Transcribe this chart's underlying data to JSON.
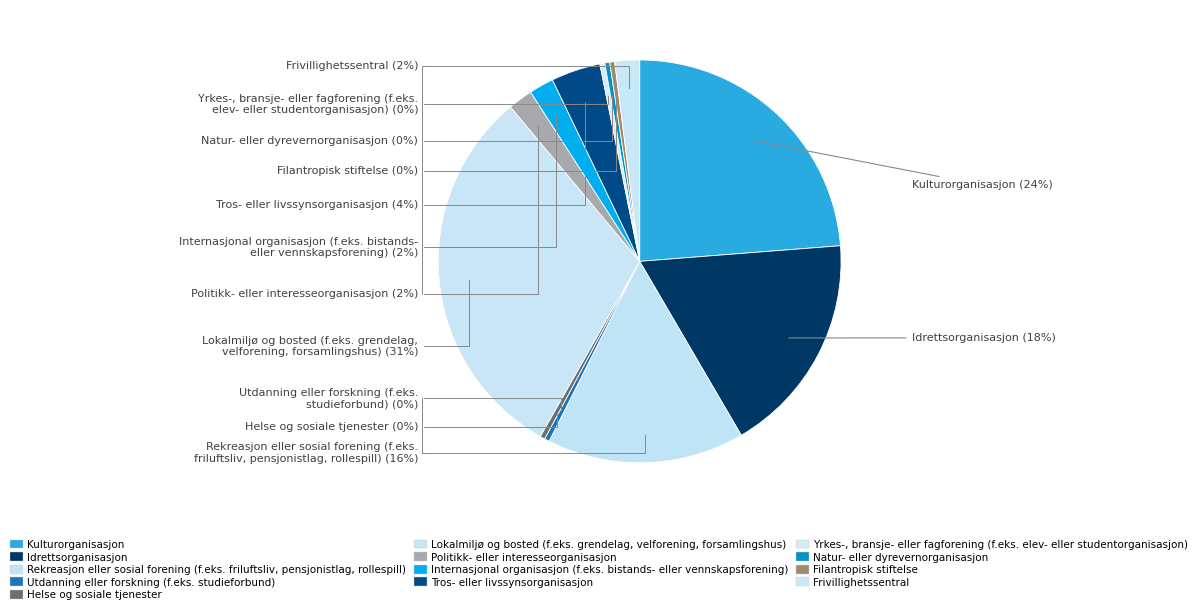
{
  "slices": [
    {
      "label": "Kulturorganisasjon",
      "pct": 24,
      "color": "#29ABE2",
      "side": "right"
    },
    {
      "label": "Idrettsorganisasjon",
      "pct": 18,
      "color": "#003865",
      "side": "right"
    },
    {
      "label": "Rekreasjon eller sosial forening (f.eks. friluftsliv, pensjonistlag, rollespill)",
      "pct": 16,
      "color": "#BFE4F5",
      "side": "left"
    },
    {
      "label": "Utdanning eller forskning (f.eks. studieforbund)",
      "pct": 0.4,
      "color": "#1B75BC",
      "side": "left"
    },
    {
      "label": "Helse og sosiale tjenester",
      "pct": 0.4,
      "color": "#6D6E71",
      "side": "left"
    },
    {
      "label": "Lokalmiljø og bosted (f.eks. grendelag, velforening, forsamlingshus)",
      "pct": 31,
      "color": "#C8E6F5",
      "side": "left"
    },
    {
      "label": "Politikk- eller interesseorganisasjon",
      "pct": 2,
      "color": "#A7A9AC",
      "side": "left"
    },
    {
      "label": "Internasjonal organisasjon (f.eks. bistands- eller vennskapsforening)",
      "pct": 2,
      "color": "#00AEEF",
      "side": "left"
    },
    {
      "label": "Tros- eller livssynsorganisasjon",
      "pct": 4,
      "color": "#004B87",
      "side": "left"
    },
    {
      "label": "Yrkes-, bransje- eller fagforening (f.eks. elev- eller studentorganisasjon)",
      "pct": 0.4,
      "color": "#D6EAF8",
      "side": "left"
    },
    {
      "label": "Natur- eller dyrevernorganisasjon",
      "pct": 0.4,
      "color": "#0093C8",
      "side": "left"
    },
    {
      "label": "Filantropisk stiftelse",
      "pct": 0.4,
      "color": "#9E8B6E",
      "side": "left"
    },
    {
      "label": "Frivillighetssentral",
      "pct": 2,
      "color": "#C8E8F8",
      "side": "left"
    }
  ],
  "display_labels": {
    "Kulturorganisasjon": "Kulturorganisasjon (24%)",
    "Idrettsorganisasjon": "Idrettsorganisasjon (18%)",
    "Rekreasjon eller sosial forening (f.eks. friluftsliv, pensjonistlag, rollespill)": "Rekreasjon eller sosial forening (f.eks.\nfriluftsliv, pensjonistlag, rollespill) (16%)",
    "Utdanning eller forskning (f.eks. studieforbund)": "Utdanning eller forskning (f.eks.\nstudieforbund) (0%)",
    "Helse og sosiale tjenester": "Helse og sosiale tjenester (0%)",
    "Lokalmiljø og bosted (f.eks. grendelag, velforening, forsamlingshus)": "Lokalmiljø og bosted (f.eks. grendelag,\nvelforening, forsamlingshus) (31%)",
    "Politikk- eller interesseorganisasjon": "Politikk- eller interesseorganisasjon (2%)",
    "Internasjonal organisasjon (f.eks. bistands- eller vennskapsforening)": "Internasjonal organisasjon (f.eks. bistands-\neller vennskapsforening) (2%)",
    "Tros- eller livssynsorganisasjon": "Tros- eller livssynsorganisasjon (4%)",
    "Yrkes-, bransje- eller fagforening (f.eks. elev- eller studentorganisasjon)": "Yrkes-, bransje- eller fagforening (f.eks.\nelev- eller studentorganisasjon) (0%)",
    "Natur- eller dyrevernorganisasjon": "Natur- eller dyrevernorganisasjon (0%)",
    "Filantropisk stiftelse": "Filantropisk stiftelse (0%)",
    "Frivillighetssentral": "Frivillighetssentral (2%)"
  },
  "legend_order": [
    "Kulturorganisasjon",
    "Idrettsorganisasjon",
    "Rekreasjon eller sosial forening (f.eks. friluftsliv, pensjonistlag, rollespill)",
    "Utdanning eller forskning (f.eks. studieforbund)",
    "Helse og sosiale tjenester",
    "Lokalmiljø og bosted (f.eks. grendelag, velforening, forsamlingshus)",
    "Politikk- eller interesseorganisasjon",
    "Internasjonal organisasjon (f.eks. bistands- eller vennskapsforening)",
    "Tros- eller livssynsorganisasjon",
    "Yrkes-, bransje- eller fagforening (f.eks. elev- eller studentorganisasjon)",
    "Natur- eller dyrevernorganisasjon",
    "Filantropisk stiftelse",
    "Frivillighetssentral"
  ],
  "background_color": "#FFFFFF",
  "text_color": "#404040",
  "line_color": "#888888",
  "fontsize": 8,
  "legend_fontsize": 7.5
}
